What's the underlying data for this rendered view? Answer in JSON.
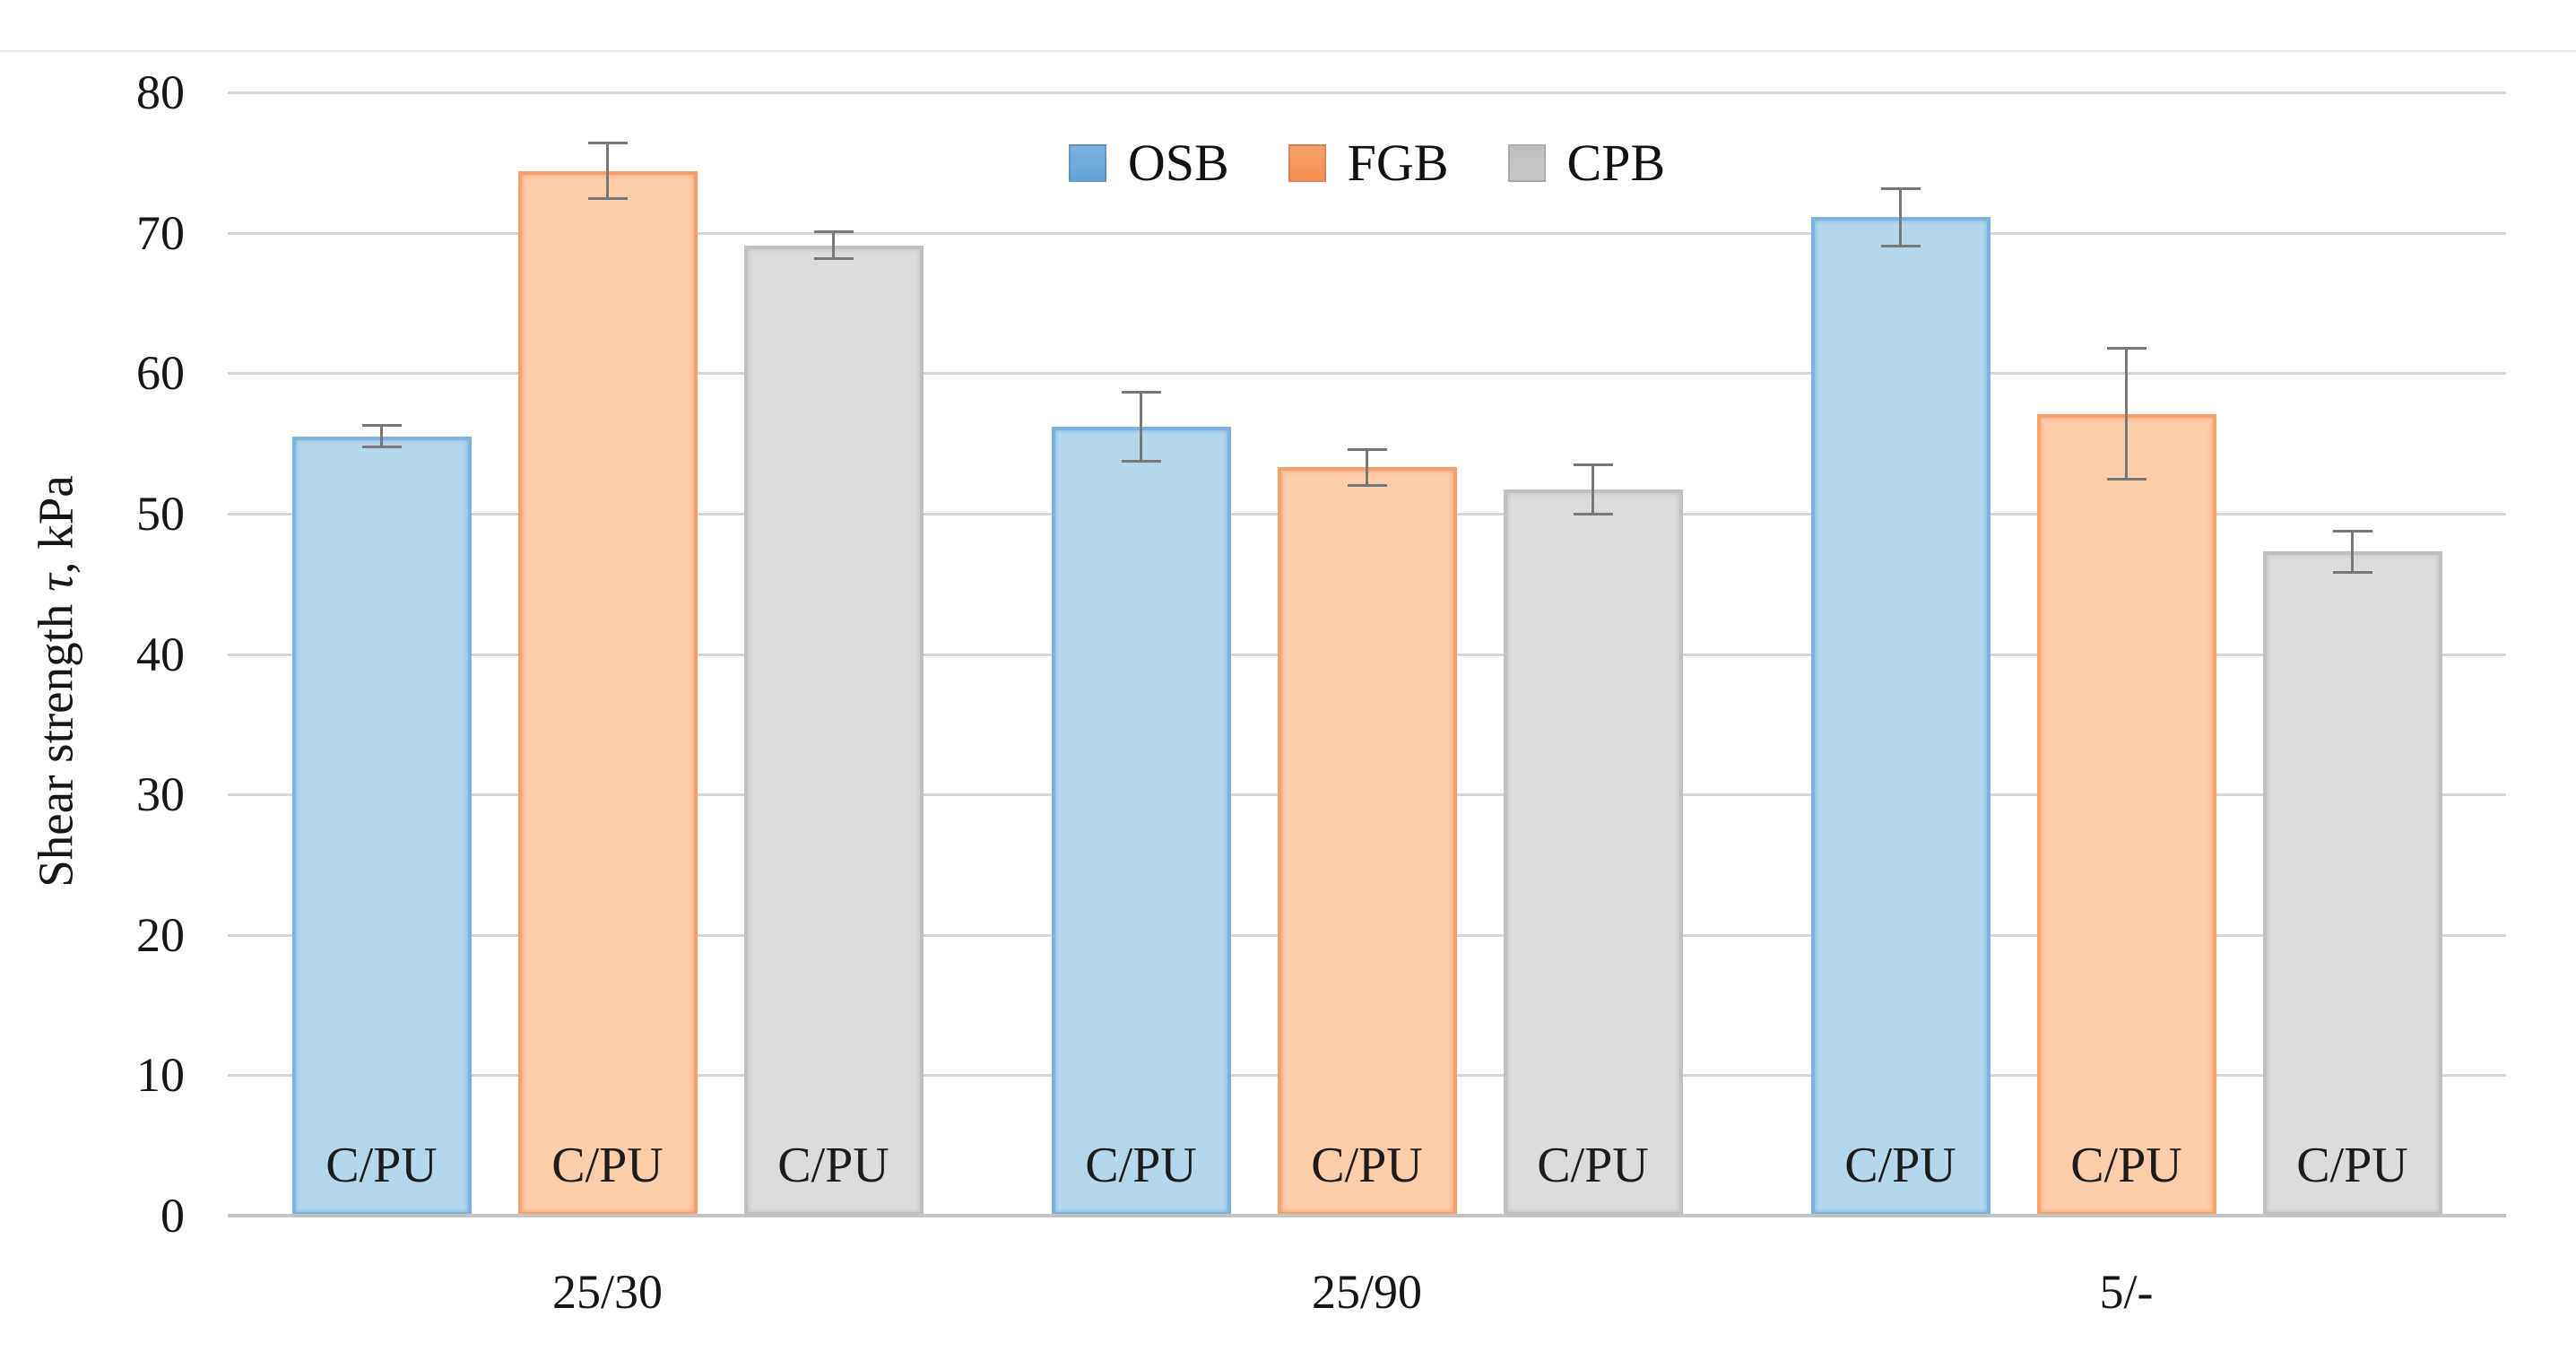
{
  "figure_title": "Shear strength bar chart",
  "y_axis": {
    "title_prefix": "Shear strength ",
    "title_symbol": "τ",
    "title_suffix": ", kPa"
  },
  "legend": {
    "items": [
      "OSB",
      "FGB",
      "CPB"
    ]
  },
  "chart_data": {
    "type": "bar",
    "title": "",
    "xlabel": "",
    "ylabel": "Shear strength τ, kPa",
    "ylim": [
      0,
      80
    ],
    "yticks": [
      0,
      10,
      20,
      30,
      40,
      50,
      60,
      70,
      80
    ],
    "grid": true,
    "legend_position": "top-center",
    "categories": [
      "25/30",
      "25/90",
      "5/-"
    ],
    "series": [
      {
        "name": "OSB",
        "values": [
          55.5,
          56.2,
          71.1
        ],
        "errors": [
          0.8,
          2.5,
          2.1
        ],
        "fill": "#b5d7ee",
        "border": "#7db2de",
        "swatch": "#61a3d7"
      },
      {
        "name": "FGB",
        "values": [
          74.4,
          53.3,
          57.1
        ],
        "errors": [
          2.0,
          1.3,
          4.7
        ],
        "fill": "#fdcdac",
        "border": "#f8a06c",
        "swatch": "#f78f51"
      },
      {
        "name": "CPB",
        "values": [
          69.1,
          51.7,
          47.3
        ],
        "errors": [
          1.0,
          1.8,
          1.5
        ],
        "fill": "#dcdcdc",
        "border": "#c0c0c0",
        "swatch": "#c7c7c7"
      }
    ],
    "bar_annotation": "C/PU",
    "error_bar_color": "#787878",
    "colors": {
      "gridline": "#d6d6d6",
      "axis_line": "#c3c3c3",
      "text": "#161616"
    }
  }
}
